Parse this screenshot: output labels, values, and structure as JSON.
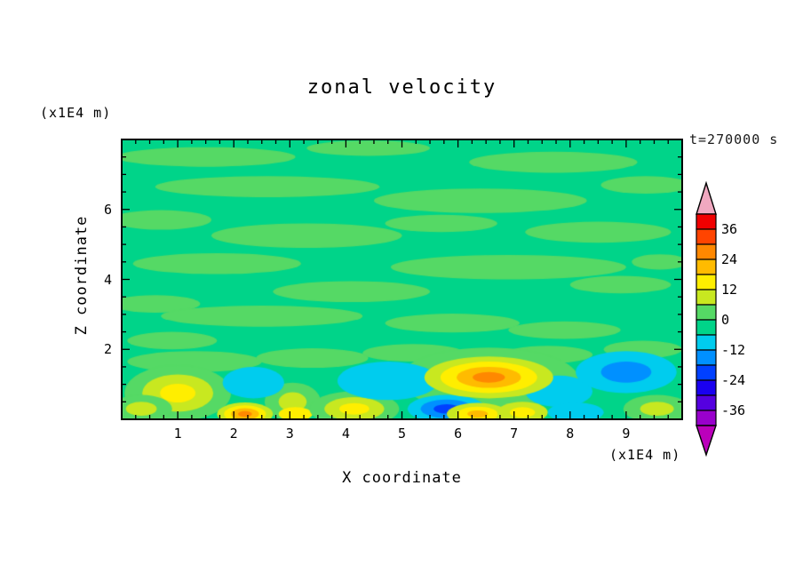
{
  "title": "zonal velocity",
  "time_label": "t=270000 s",
  "x_axis": {
    "label": "X coordinate",
    "unit": "(x1E4 m)",
    "tick_labels": [
      "1",
      "2",
      "3",
      "4",
      "5",
      "6",
      "7",
      "8",
      "9"
    ],
    "tick_values": [
      1,
      2,
      3,
      4,
      5,
      6,
      7,
      8,
      9
    ]
  },
  "y_axis": {
    "label": "Z coordinate",
    "unit": "(x1E4 m)",
    "tick_labels": [
      "2",
      "4",
      "6"
    ],
    "tick_values": [
      2,
      4,
      6
    ]
  },
  "colorbar": {
    "labels": [
      "36",
      "24",
      "12",
      "0",
      "-12",
      "-24",
      "-36"
    ],
    "band_colors_top_to_bottom": [
      "#F00000",
      "#FF4400",
      "#FF8800",
      "#FFBB00",
      "#FFEE00",
      "#C8E820",
      "#55D965",
      "#00D489",
      "#00CCEE",
      "#0090FF",
      "#0040FF",
      "#1A00F0",
      "#5500E0",
      "#9900CC"
    ],
    "arrow_top_color": "#F0A8C0",
    "arrow_bottom_color": "#BB00BB",
    "outline_color": "#000000"
  },
  "chart_data": {
    "type": "heatmap",
    "subtype": "filled-contour",
    "title": "zonal velocity",
    "xlabel": "X coordinate (x1E4 m)",
    "ylabel": "Z coordinate (x1E4 m)",
    "time_annotation": "t=270000 s",
    "xlim": [
      0,
      10
    ],
    "ylim": [
      0,
      8
    ],
    "contour_interval": 6,
    "levels": [
      -42,
      -36,
      -30,
      -24,
      -18,
      -12,
      -6,
      0,
      6,
      12,
      18,
      24,
      30,
      36,
      42
    ],
    "level_colors_low_to_high": [
      "#BB00BB",
      "#9900CC",
      "#5500E0",
      "#1A00F0",
      "#0040FF",
      "#0090FF",
      "#00CCEE",
      "#00D489",
      "#55D965",
      "#C8E820",
      "#FFEE00",
      "#FFBB00",
      "#FF8800",
      "#FF4400",
      "#F00000",
      "#F0A8C0"
    ],
    "background_color": "#00D489",
    "background_value_range": [
      -6,
      0
    ],
    "streak_color": "#55D965",
    "streaks": [
      [
        1.5,
        7.5,
        1.6,
        0.28
      ],
      [
        4.4,
        7.75,
        1.1,
        0.22
      ],
      [
        7.7,
        7.35,
        1.5,
        0.3
      ],
      [
        2.6,
        6.65,
        2.0,
        0.3
      ],
      [
        6.4,
        6.25,
        1.9,
        0.35
      ],
      [
        9.35,
        6.7,
        0.8,
        0.25
      ],
      [
        0.7,
        5.7,
        0.9,
        0.28
      ],
      [
        3.3,
        5.25,
        1.7,
        0.35
      ],
      [
        5.7,
        5.6,
        1.0,
        0.25
      ],
      [
        8.5,
        5.35,
        1.3,
        0.3
      ],
      [
        1.7,
        4.45,
        1.5,
        0.3
      ],
      [
        6.9,
        4.35,
        2.1,
        0.35
      ],
      [
        9.6,
        4.5,
        0.5,
        0.22
      ],
      [
        4.1,
        3.65,
        1.4,
        0.3
      ],
      [
        0.6,
        3.3,
        0.8,
        0.25
      ],
      [
        8.9,
        3.85,
        0.9,
        0.25
      ],
      [
        2.5,
        2.95,
        1.8,
        0.3
      ],
      [
        5.9,
        2.75,
        1.2,
        0.27
      ],
      [
        7.9,
        2.55,
        1.0,
        0.25
      ],
      [
        0.9,
        2.25,
        0.8,
        0.25
      ],
      [
        1.3,
        1.65,
        1.2,
        0.3
      ],
      [
        3.4,
        1.75,
        1.0,
        0.28
      ],
      [
        5.2,
        1.9,
        0.9,
        0.25
      ],
      [
        7.6,
        1.85,
        0.8,
        0.25
      ],
      [
        9.3,
        2.0,
        0.7,
        0.25
      ]
    ],
    "features": [
      {
        "name": "warm-halo",
        "x": 6.55,
        "z": 1.15,
        "rx": 1.6,
        "rz": 0.9,
        "colors": [
          "#55D965"
        ]
      },
      {
        "name": "warm-blob",
        "x": 1.0,
        "z": 0.75,
        "rx": 0.95,
        "rz": 0.8,
        "colors": [
          "#55D965",
          "#C8E820",
          "#FFEE00"
        ]
      },
      {
        "name": "warm-corner",
        "x": 0.35,
        "z": 0.3,
        "rx": 0.55,
        "rz": 0.4,
        "colors": [
          "#55D965",
          "#C8E820"
        ]
      },
      {
        "name": "warm-blob",
        "x": 3.05,
        "z": 0.5,
        "rx": 0.5,
        "rz": 0.55,
        "colors": [
          "#55D965",
          "#C8E820"
        ]
      },
      {
        "name": "warm-spot",
        "x": 3.1,
        "z": 0.15,
        "rx": 0.3,
        "rz": 0.2,
        "colors": [
          "#FFEE00"
        ]
      },
      {
        "name": "warm-blob",
        "x": 4.15,
        "z": 0.3,
        "rx": 0.8,
        "rz": 0.5,
        "colors": [
          "#55D965",
          "#C8E820",
          "#FFEE00"
        ]
      },
      {
        "name": "warm-corner",
        "x": 9.55,
        "z": 0.3,
        "rx": 0.6,
        "rz": 0.4,
        "colors": [
          "#55D965",
          "#C8E820"
        ]
      },
      {
        "name": "cool-blob",
        "x": 2.35,
        "z": 1.05,
        "rx": 0.55,
        "rz": 0.45,
        "colors": [
          "#00CCEE"
        ]
      },
      {
        "name": "cool-blob",
        "x": 4.75,
        "z": 1.1,
        "rx": 0.9,
        "rz": 0.55,
        "colors": [
          "#00CCEE"
        ]
      },
      {
        "name": "cool-blob",
        "x": 7.8,
        "z": 0.8,
        "rx": 0.6,
        "rz": 0.45,
        "colors": [
          "#00CCEE"
        ]
      },
      {
        "name": "cool-spot",
        "x": 8.1,
        "z": 0.2,
        "rx": 0.5,
        "rz": 0.28,
        "colors": [
          "#00CCEE"
        ]
      },
      {
        "name": "cool-blob-deep",
        "x": 9.0,
        "z": 1.35,
        "rx": 0.9,
        "rz": 0.6,
        "colors": [
          "#00CCEE",
          "#0090FF"
        ]
      },
      {
        "name": "cool-blob-deep",
        "x": 5.8,
        "z": 0.3,
        "rx": 0.7,
        "rz": 0.4,
        "colors": [
          "#00CCEE",
          "#0090FF",
          "#0040FF"
        ]
      },
      {
        "name": "warm-core",
        "x": 6.55,
        "z": 1.2,
        "rx": 1.15,
        "rz": 0.6,
        "colors": [
          "#C8E820",
          "#FFEE00",
          "#FFBB00",
          "#FF8800"
        ]
      },
      {
        "name": "warm-spot",
        "x": 6.35,
        "z": 0.15,
        "rx": 0.55,
        "rz": 0.32,
        "colors": [
          "#C8E820",
          "#FFEE00",
          "#FFBB00"
        ]
      },
      {
        "name": "warm-spot",
        "x": 7.15,
        "z": 0.2,
        "rx": 0.45,
        "rz": 0.3,
        "colors": [
          "#C8E820",
          "#FFEE00"
        ]
      },
      {
        "name": "warm-spot",
        "x": 2.2,
        "z": 0.15,
        "rx": 0.5,
        "rz": 0.33,
        "colors": [
          "#C8E820",
          "#FFEE00",
          "#FFBB00",
          "#FF8800"
        ]
      }
    ]
  },
  "layout_note": "values shown only where rendered in pixels"
}
